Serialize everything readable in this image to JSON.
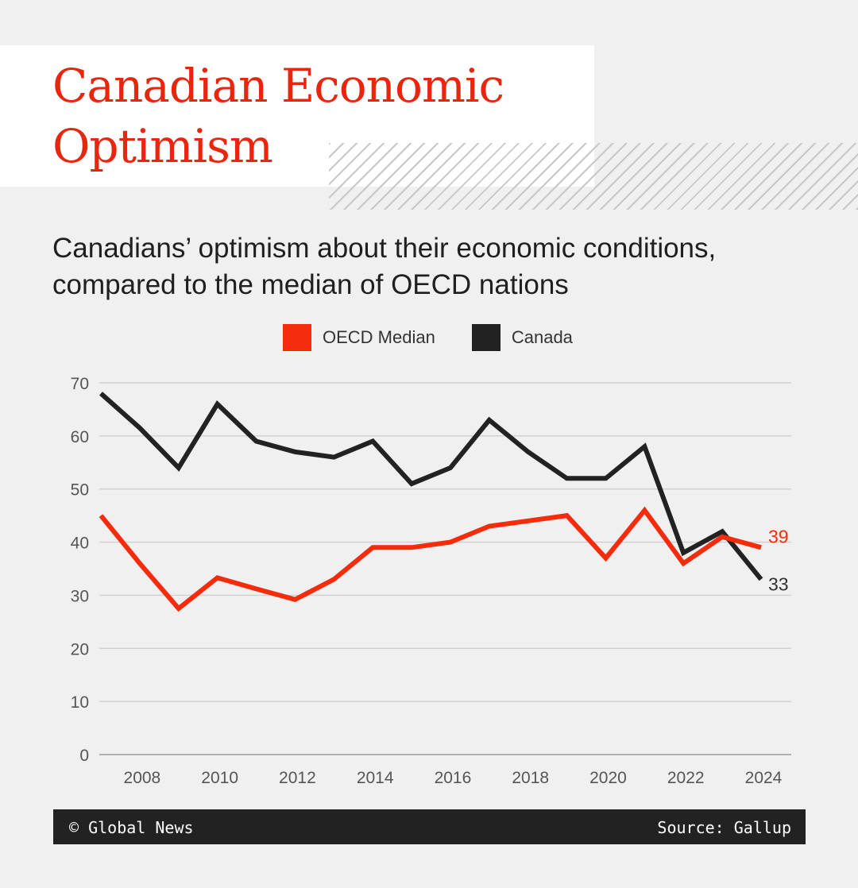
{
  "header": {
    "title": "Canadian Economic Optimism",
    "subtitle": "Canadians’ optimism about their economic conditions, compared to the median of OECD nations"
  },
  "legend": [
    {
      "label": "OECD Median",
      "color": "#f42c0c"
    },
    {
      "label": "Canada",
      "color": "#222222"
    }
  ],
  "chart_data": {
    "type": "line",
    "title": "Canadian Economic Optimism",
    "subtitle": "Canadians’ optimism about their economic conditions, compared to the median of OECD nations",
    "x": [
      2007,
      2008,
      2009,
      2010,
      2011,
      2012,
      2013,
      2014,
      2015,
      2016,
      2017,
      2018,
      2019,
      2020,
      2021,
      2022,
      2023,
      2024
    ],
    "x_ticks": [
      2008,
      2010,
      2012,
      2014,
      2016,
      2018,
      2020,
      2022,
      2024
    ],
    "y_ticks": [
      0,
      10,
      20,
      30,
      40,
      50,
      60,
      70
    ],
    "ylim": [
      0,
      70
    ],
    "grid": true,
    "legend_position": "top-center",
    "series": [
      {
        "name": "OECD Median",
        "color": "#f42c0c",
        "values": [
          45,
          36,
          27.5,
          33.3,
          31.2,
          29.2,
          33,
          39,
          39,
          40,
          43,
          44,
          45,
          37,
          46,
          36,
          41,
          39
        ],
        "end_label": "39"
      },
      {
        "name": "Canada",
        "color": "#222222",
        "values": [
          68,
          61.5,
          54,
          66,
          59,
          57,
          56,
          59,
          51,
          54,
          63,
          57,
          52,
          52,
          58,
          38,
          42,
          33
        ],
        "end_label": "33"
      }
    ]
  },
  "footer": {
    "credit": "© Global News",
    "source": "Source: Gallup"
  }
}
